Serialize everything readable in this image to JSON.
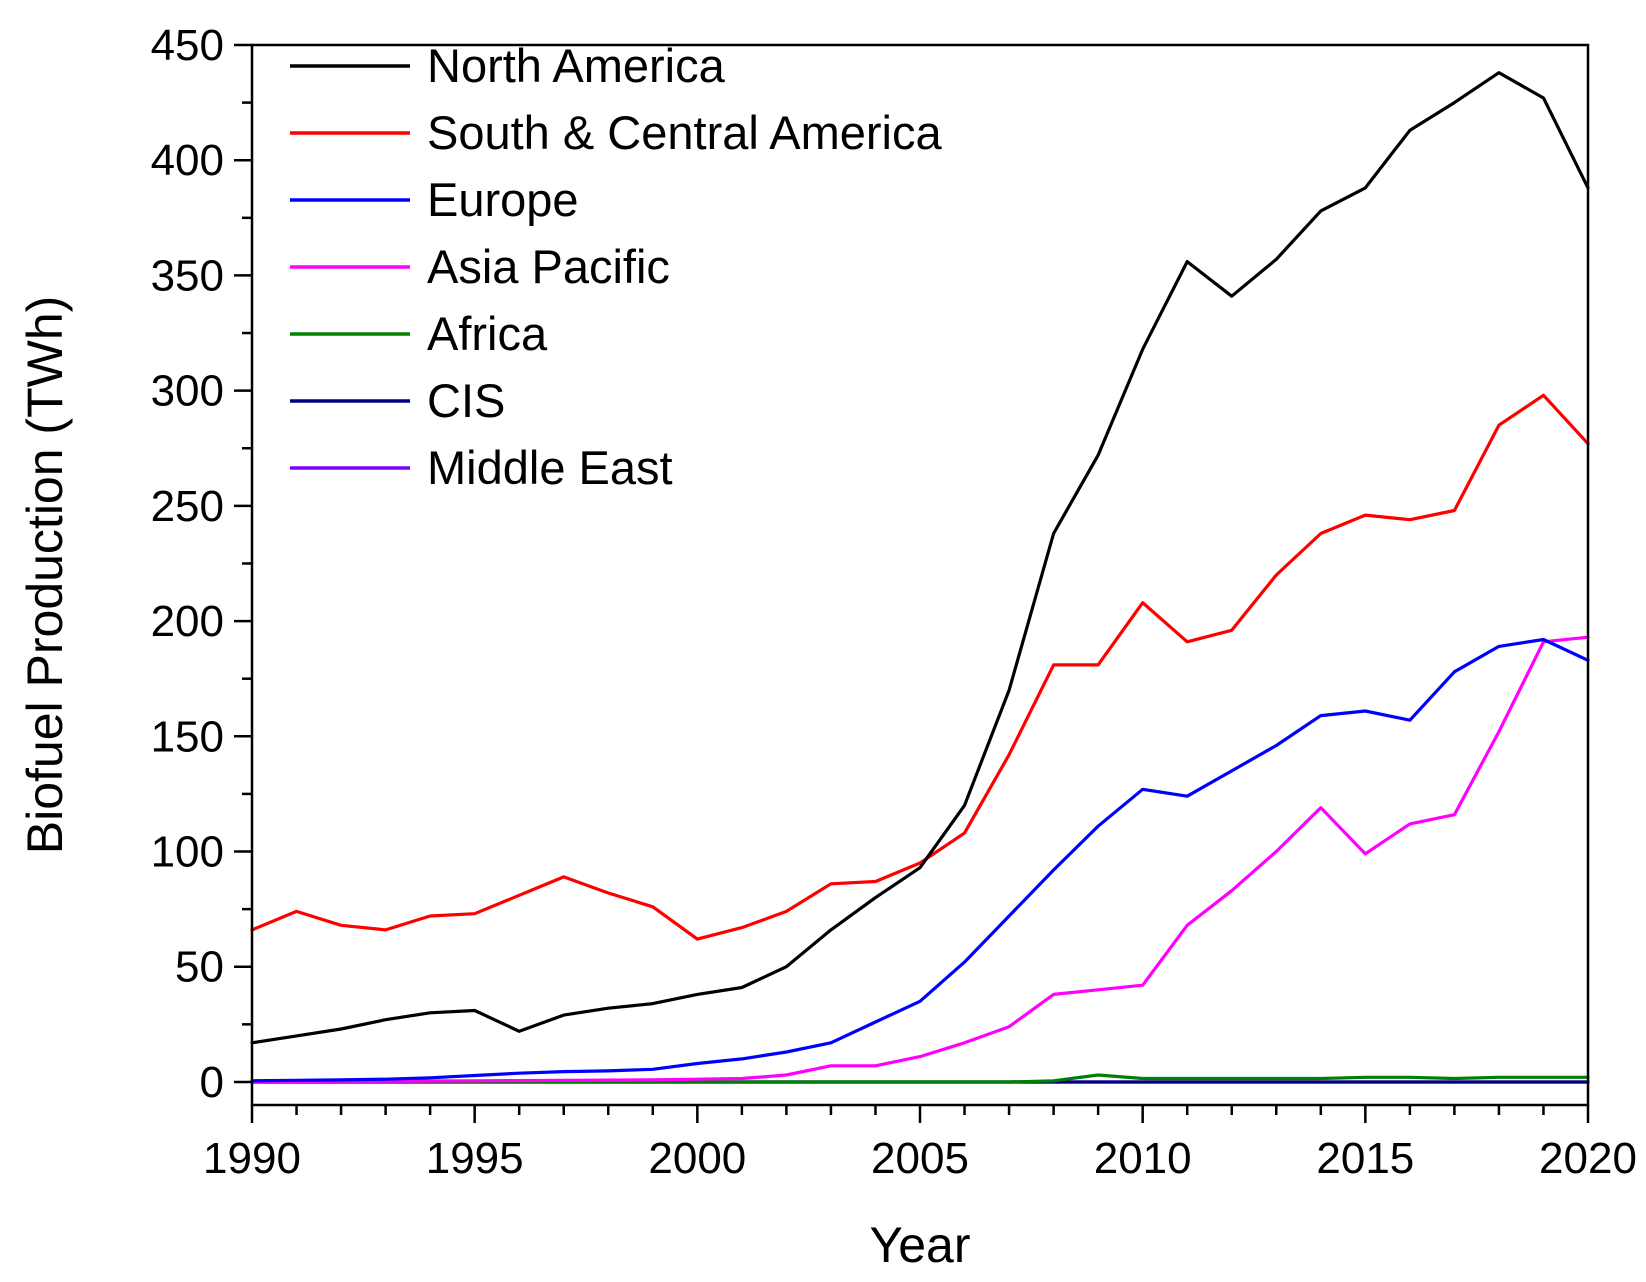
{
  "chart_data": {
    "type": "line",
    "title": "",
    "xlabel": "Year",
    "ylabel": "Biofuel Production (TWh)",
    "xlim": [
      1990,
      2020
    ],
    "ylim": [
      -10,
      450
    ],
    "xticks": [
      1990,
      1995,
      2000,
      2005,
      2010,
      2015,
      2020
    ],
    "yticks": [
      0,
      50,
      100,
      150,
      200,
      250,
      300,
      350,
      400,
      450
    ],
    "grid": false,
    "legend_position": "top-left",
    "x": [
      1990,
      1991,
      1992,
      1993,
      1994,
      1995,
      1996,
      1997,
      1998,
      1999,
      2000,
      2001,
      2002,
      2003,
      2004,
      2005,
      2006,
      2007,
      2008,
      2009,
      2010,
      2011,
      2012,
      2013,
      2014,
      2015,
      2016,
      2017,
      2018,
      2019,
      2020
    ],
    "series": [
      {
        "name": "North America",
        "color": "#000000",
        "values": [
          17,
          20,
          23,
          27,
          30,
          31,
          22,
          29,
          32,
          34,
          38,
          41,
          50,
          66,
          80,
          93,
          120,
          170,
          238,
          272,
          318,
          356,
          341,
          357,
          378,
          388,
          413,
          425,
          438,
          427,
          388
        ]
      },
      {
        "name": "South & Central America",
        "color": "#ff0000",
        "values": [
          66,
          74,
          68,
          66,
          72,
          73,
          81,
          89,
          82,
          76,
          62,
          67,
          74,
          86,
          87,
          95,
          108,
          142,
          181,
          181,
          208,
          191,
          196,
          220,
          238,
          246,
          244,
          248,
          285,
          298,
          277
        ]
      },
      {
        "name": "Europe",
        "color": "#0000ff",
        "values": [
          0.5,
          0.7,
          0.9,
          1.2,
          1.8,
          2.8,
          3.8,
          4.5,
          4.8,
          5.5,
          8,
          10,
          13,
          17,
          26,
          35,
          52,
          72,
          92,
          111,
          127,
          124,
          135,
          146,
          159,
          161,
          157,
          178,
          189,
          192,
          183
        ]
      },
      {
        "name": "Asia Pacific",
        "color": "#ff00ff",
        "values": [
          0.2,
          0.2,
          0.3,
          0.3,
          0.4,
          0.5,
          0.6,
          0.7,
          0.8,
          0.9,
          1.2,
          1.5,
          3,
          7,
          7,
          11,
          17,
          24,
          38,
          40,
          42,
          68,
          83,
          100,
          119,
          99,
          112,
          116,
          152,
          191,
          193
        ]
      },
      {
        "name": "Africa",
        "color": "#008000",
        "values": [
          0,
          0,
          0,
          0,
          0,
          0,
          0,
          0,
          0,
          0,
          0,
          0,
          0,
          0,
          0,
          0,
          0,
          0,
          0.5,
          3,
          1.5,
          1.5,
          1.5,
          1.5,
          1.5,
          2,
          2,
          1.5,
          2,
          2,
          2
        ]
      },
      {
        "name": "CIS",
        "color": "#000080",
        "values": [
          0,
          0,
          0,
          0,
          0,
          0,
          0,
          0,
          0,
          0,
          0,
          0,
          0,
          0,
          0,
          0,
          0,
          0,
          0,
          0,
          0,
          0,
          0,
          0,
          0,
          0,
          0,
          0,
          0,
          0,
          0
        ]
      },
      {
        "name": "Middle East",
        "color": "#8000ff",
        "values": [
          0,
          0,
          0,
          0,
          0,
          0,
          0,
          0,
          0,
          0,
          0,
          0,
          0,
          0,
          0,
          0,
          0,
          0,
          0,
          0,
          0,
          0,
          0,
          0,
          0,
          0,
          0,
          0,
          0,
          0,
          0
        ]
      }
    ]
  }
}
